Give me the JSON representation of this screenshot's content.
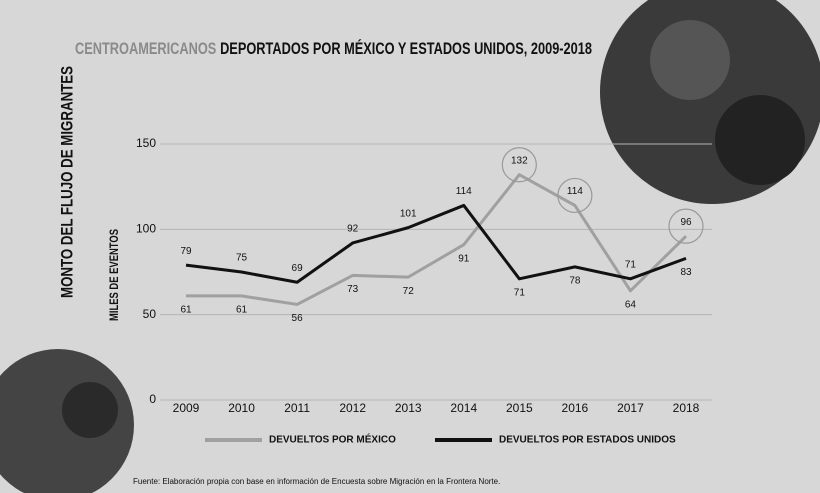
{
  "chart_data": {
    "type": "line",
    "title": [
      "CENTROAMERICANOS",
      "DEPORTADOS POR MÉXICO Y ESTADOS UNIDOS, 2009-2018"
    ],
    "ylabel": "MILES DE EVENTOS",
    "side_label": "MONTO DEL FLUJO DE MIGRANTES",
    "source": "Fuente: Elaboración propia con base en información de Encuesta sobre Migración en la Frontera Norte.",
    "categories": [
      "2009",
      "2010",
      "2011",
      "2012",
      "2013",
      "2014",
      "2015",
      "2016",
      "2017",
      "2018"
    ],
    "series": [
      {
        "name": "DEVUELTOS POR MÉXICO",
        "color": "#a0a0a0",
        "values": [
          61,
          61,
          56,
          73,
          72,
          91,
          132,
          114,
          64,
          96
        ],
        "highlight": [
          6,
          7,
          9
        ]
      },
      {
        "name": "DEVUELTOS POR ESTADOS UNIDOS",
        "color": "#111111",
        "values": [
          79,
          75,
          69,
          92,
          101,
          114,
          71,
          78,
          71,
          83
        ]
      }
    ],
    "ylim": [
      0,
      150
    ],
    "yticks": [
      0,
      50,
      100,
      150
    ],
    "grid": true
  }
}
